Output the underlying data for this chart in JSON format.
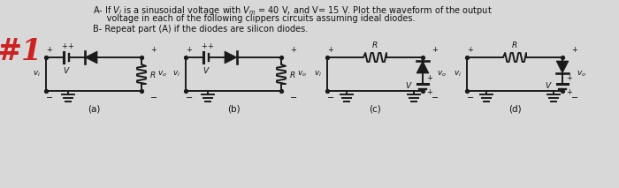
{
  "background_color": "#d8d8d8",
  "title_line1": "A- If $V_i$ is a sinusoidal voltage with $V_m$ = 40 V, and V= 15 V. Plot the waveform of the output",
  "title_line2": "     voltage in each of the following clippers circuits assuming ideal diodes.",
  "title_line3": "B- Repeat part (A) if the diodes are silicon diodes.",
  "labels": [
    "(a)",
    "(b)",
    "(c)",
    "(d)"
  ],
  "hashtag_color": "#cc2222",
  "circuit_color": "#1a1a1a",
  "text_color": "#111111",
  "fig_width": 7.0,
  "fig_height": 2.13,
  "dpi": 100
}
